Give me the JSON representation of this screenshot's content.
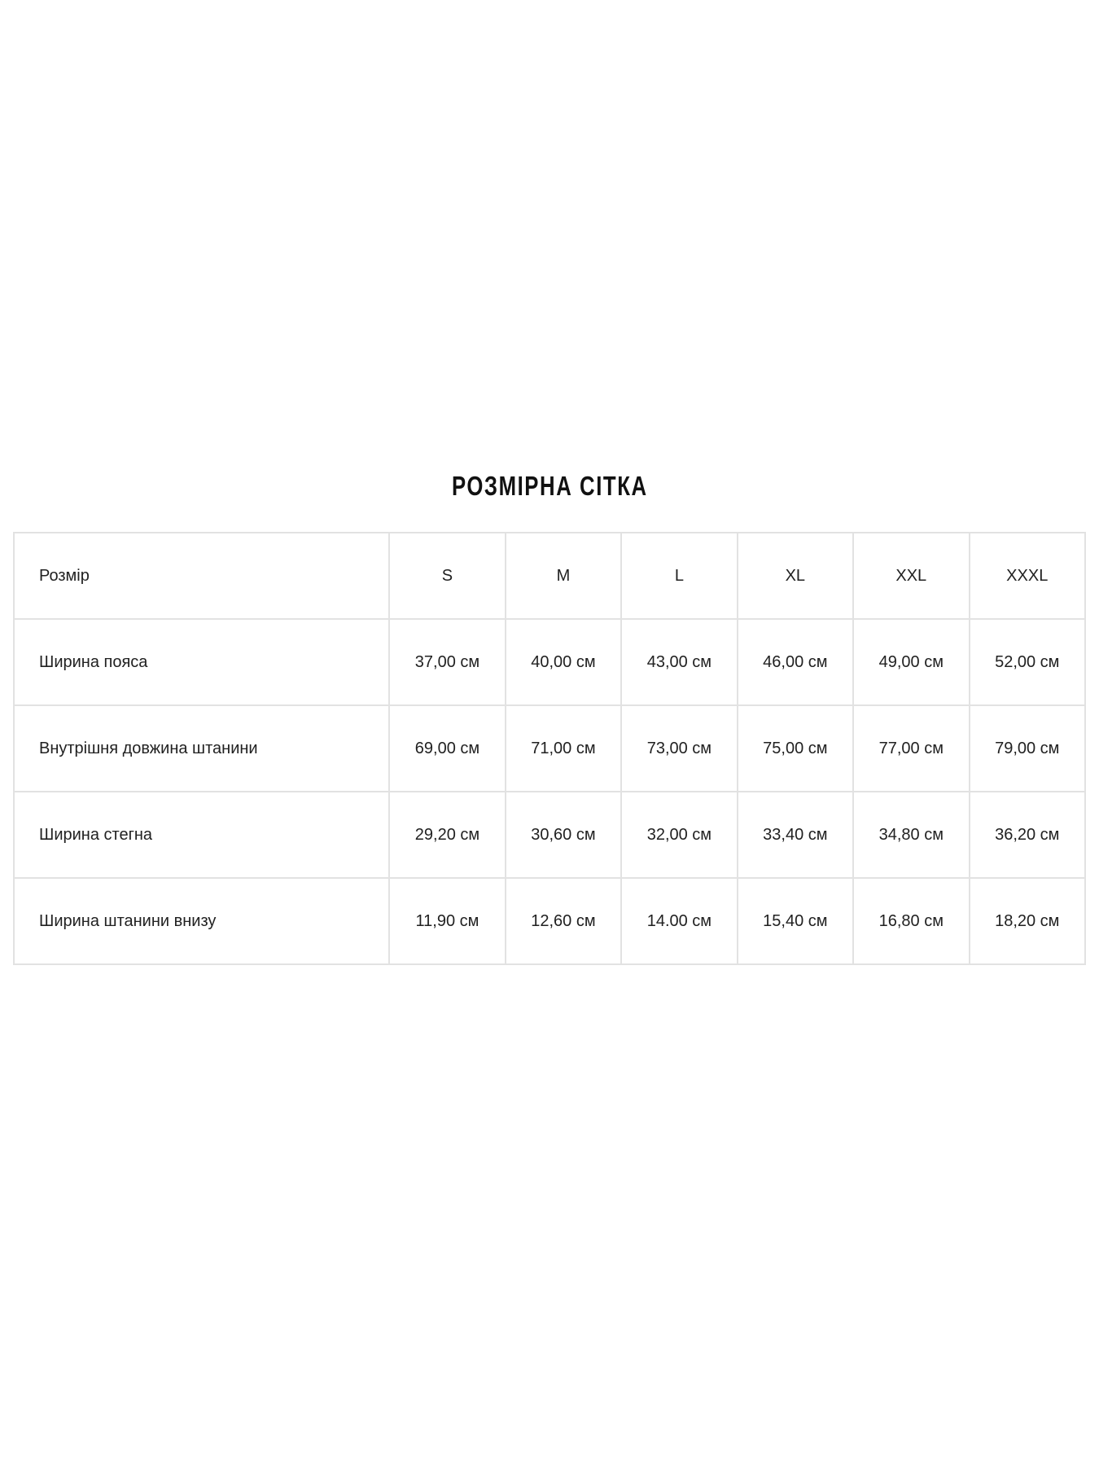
{
  "page": {
    "background": "#ffffff",
    "text_color": "#212121",
    "border_color": "#e2e2e2"
  },
  "title": "РОЗМІРНА СІТКА",
  "size_table": {
    "header": {
      "label": "Розмір",
      "sizes": [
        "S",
        "M",
        "L",
        "XL",
        "XXL",
        "XXXL"
      ]
    },
    "rows": [
      {
        "label": "Ширина пояса",
        "values": [
          "37,00 см",
          "40,00 см",
          "43,00 см",
          "46,00 см",
          "49,00 см",
          "52,00 см"
        ]
      },
      {
        "label": "Внутрішня довжина штанини",
        "values": [
          "69,00 см",
          "71,00 см",
          "73,00 см",
          "75,00 см",
          "77,00 см",
          "79,00 см"
        ]
      },
      {
        "label": "Ширина стегна",
        "values": [
          "29,20 см",
          "30,60 см",
          "32,00 см",
          "33,40 см",
          "34,80 см",
          "36,20 см"
        ]
      },
      {
        "label": "Ширина штанини внизу",
        "values": [
          "11,90 см",
          "12,60 см",
          "14.00 см",
          "15,40 см",
          "16,80 см",
          "18,20 см"
        ]
      }
    ]
  }
}
